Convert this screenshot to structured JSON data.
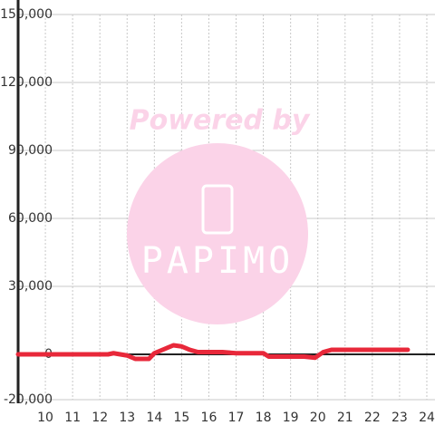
{
  "chart_data": {
    "type": "line",
    "watermark": {
      "top": "Powered by",
      "bottom": "PAPIMO"
    },
    "x": [
      9,
      12.3,
      12.5,
      13,
      13.3,
      13.8,
      14,
      14.4,
      14.7,
      15,
      15.3,
      15.6,
      16.5,
      17,
      18,
      18.2,
      19.5,
      19.9,
      20.2,
      20.5,
      23.3
    ],
    "series": [
      {
        "color": "#e8283a",
        "values": [
          0,
          0,
          500,
          -500,
          -2000,
          -2000,
          500,
          2500,
          4000,
          3500,
          2000,
          1000,
          1000,
          500,
          500,
          -1000,
          -1000,
          -1500,
          1000,
          2000,
          2000
        ]
      }
    ],
    "xlim": [
      9,
      24.3
    ],
    "xticks": [
      10,
      11,
      12,
      13,
      14,
      15,
      16,
      17,
      18,
      19,
      20,
      21,
      22,
      23,
      24
    ],
    "ylim": [
      -20000,
      150000
    ],
    "yticks": [
      {
        "value": -20000,
        "label": "-20,000"
      },
      0,
      {
        "value": 30000,
        "label": "30,000"
      },
      {
        "value": 60000,
        "label": "60,000"
      },
      {
        "value": 90000,
        "label": "90,000"
      },
      {
        "value": 120000,
        "label": "120,000"
      },
      {
        "value": 150000,
        "label": "150,000"
      }
    ],
    "grid": true
  }
}
